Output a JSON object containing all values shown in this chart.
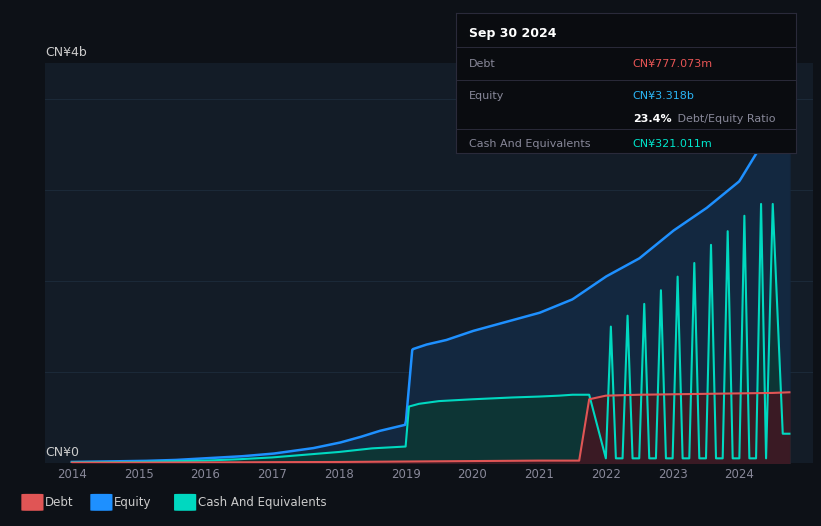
{
  "bg_color": "#0d1117",
  "plot_bg_color": "#131c27",
  "grid_color": "#1e2d3d",
  "tooltip_date": "Sep 30 2024",
  "tooltip_debt_label": "Debt",
  "tooltip_debt_value": "CN¥777.073m",
  "tooltip_debt_color": "#e85555",
  "tooltip_equity_label": "Equity",
  "tooltip_equity_value": "CN¥3.318b",
  "tooltip_equity_color": "#2ab5f5",
  "tooltip_ratio_bold": "23.4%",
  "tooltip_ratio_rest": " Debt/Equity Ratio",
  "tooltip_cash_label": "Cash And Equivalents",
  "tooltip_cash_value": "CN¥321.011m",
  "tooltip_cash_color": "#00e5cc",
  "ylabel_top": "CN¥4b",
  "ylabel_bottom": "CN¥0",
  "equity_color": "#1e90ff",
  "equity_fill": "#132840",
  "debt_color": "#e05555",
  "debt_fill": "#3a1a24",
  "cash_color": "#00d8c0",
  "cash_fill": "#0d3535",
  "legend_debt_label": "Debt",
  "legend_equity_label": "Equity",
  "legend_cash_label": "Cash And Equivalents",
  "ylim": [
    0,
    4.4
  ],
  "xlim": [
    2013.6,
    2025.1
  ],
  "xticks": [
    2014,
    2015,
    2016,
    2017,
    2018,
    2019,
    2020,
    2021,
    2022,
    2023,
    2024
  ]
}
